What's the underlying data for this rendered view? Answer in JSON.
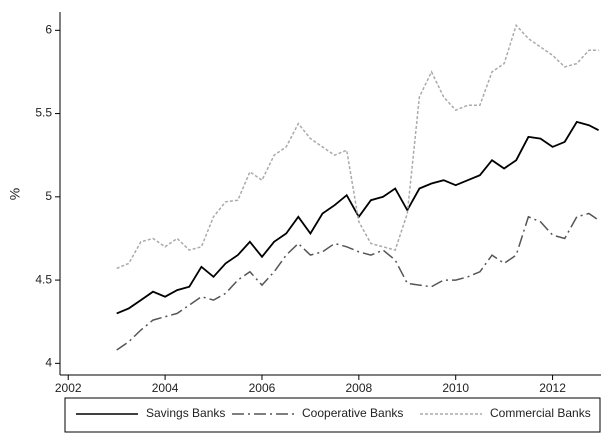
{
  "chart_data": {
    "type": "line",
    "y_label": "%",
    "x": [
      2003,
      2003.25,
      2003.5,
      2003.75,
      2004,
      2004.25,
      2004.5,
      2004.75,
      2005,
      2005.25,
      2005.5,
      2005.75,
      2006,
      2006.25,
      2006.5,
      2006.75,
      2007,
      2007.25,
      2007.5,
      2007.75,
      2008,
      2008.25,
      2008.5,
      2008.75,
      2009,
      2009.25,
      2009.5,
      2009.75,
      2010,
      2010.25,
      2010.5,
      2010.75,
      2011,
      2011.25,
      2011.5,
      2011.75,
      2012,
      2012.25,
      2012.5,
      2012.75,
      2012.95
    ],
    "series": [
      {
        "name": "Savings Banks",
        "color": "#000000",
        "dash": "solid",
        "values": [
          4.3,
          4.33,
          4.38,
          4.43,
          4.4,
          4.44,
          4.46,
          4.58,
          4.52,
          4.6,
          4.65,
          4.73,
          4.64,
          4.73,
          4.78,
          4.88,
          4.78,
          4.9,
          4.95,
          5.01,
          4.88,
          4.98,
          5.0,
          5.05,
          4.92,
          5.05,
          5.08,
          5.1,
          5.07,
          5.1,
          5.13,
          5.22,
          5.17,
          5.22,
          5.36,
          5.35,
          5.3,
          5.33,
          5.45,
          5.43,
          5.4
        ]
      },
      {
        "name": "Cooperative Banks",
        "color": "#555555",
        "dash": "dashdot",
        "values": [
          4.08,
          4.13,
          4.2,
          4.26,
          4.28,
          4.3,
          4.35,
          4.4,
          4.38,
          4.42,
          4.5,
          4.55,
          4.47,
          4.55,
          4.65,
          4.72,
          4.65,
          4.67,
          4.72,
          4.7,
          4.67,
          4.65,
          4.68,
          4.62,
          4.48,
          4.47,
          4.46,
          4.5,
          4.5,
          4.52,
          4.55,
          4.65,
          4.6,
          4.65,
          4.88,
          4.85,
          4.77,
          4.75,
          4.88,
          4.9,
          4.86
        ]
      },
      {
        "name": "Commercial Banks",
        "color": "#aaaaaa",
        "dash": "dotted",
        "values": [
          4.57,
          4.6,
          4.73,
          4.75,
          4.7,
          4.75,
          4.68,
          4.7,
          4.88,
          4.97,
          4.98,
          5.15,
          5.1,
          5.25,
          5.3,
          5.44,
          5.35,
          5.3,
          5.25,
          5.28,
          4.85,
          4.72,
          4.7,
          4.68,
          4.9,
          5.6,
          5.75,
          5.6,
          5.52,
          5.55,
          5.55,
          5.75,
          5.8,
          6.03,
          5.95,
          5.9,
          5.85,
          5.78,
          5.8,
          5.88,
          5.88
        ]
      }
    ],
    "xlim": [
      2001.83,
      2013
    ],
    "xticks": [
      2002,
      2004,
      2006,
      2008,
      2010,
      2012
    ],
    "ylim": [
      3.93,
      6.11
    ],
    "yticks": [
      4,
      4.5,
      5,
      5.5,
      6
    ],
    "grid": false,
    "legend": "bottom"
  }
}
